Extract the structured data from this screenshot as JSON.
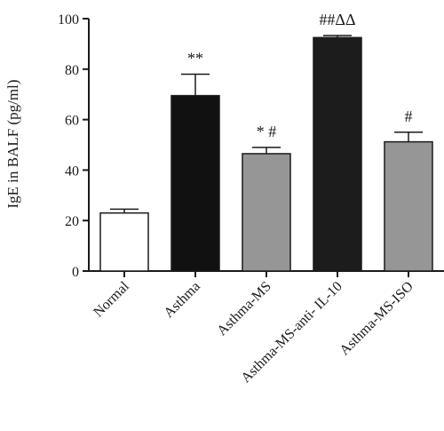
{
  "chart_data": {
    "type": "bar",
    "ylabel": "IgE in BALF (pg/ml)",
    "xlabel": "",
    "ylim": [
      0,
      100
    ],
    "yticks": [
      0,
      20,
      40,
      60,
      80,
      100
    ],
    "categories": [
      "Normal",
      "Asthma",
      "Asthma-MS",
      "Asthma-MS-anti- IL-10",
      "Asthma-MS-ISO"
    ],
    "values": [
      23,
      69.5,
      46.5,
      92.5,
      51.2
    ],
    "errors": [
      1.5,
      8.5,
      2.5,
      0.8,
      3.8
    ],
    "annotations": [
      "",
      "**",
      "* #",
      "##ΔΔ",
      "#"
    ],
    "bar_colors": [
      "#ffffff",
      "#111111",
      "#969696",
      "#1c1c1c",
      "#969696"
    ],
    "grid": false,
    "legend": "none"
  }
}
